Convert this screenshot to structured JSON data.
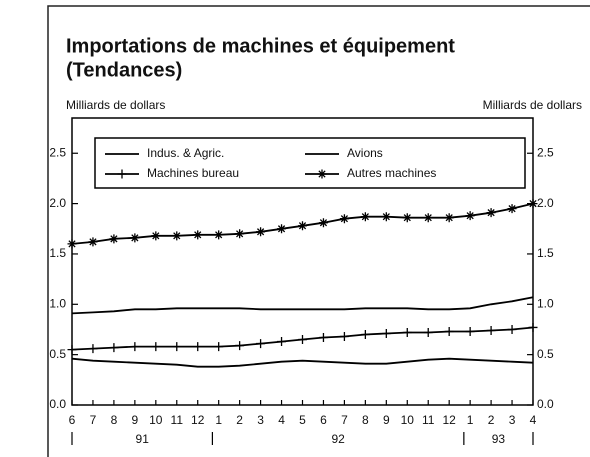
{
  "chart_data": {
    "type": "line",
    "title": [
      "Importations de machines et équipement",
      "(Tendances)"
    ],
    "y_label_left": "Milliards de dollars",
    "y_label_right": "Milliards de dollars",
    "categories": [
      "6",
      "7",
      "8",
      "9",
      "10",
      "11",
      "12",
      "1",
      "2",
      "3",
      "4",
      "5",
      "6",
      "7",
      "8",
      "9",
      "10",
      "11",
      "12",
      "1",
      "2",
      "3",
      "4"
    ],
    "year_labels": [
      "91",
      "92",
      "93"
    ],
    "ylim": [
      0,
      2.85
    ],
    "yticks": [
      {
        "value": 0,
        "label": "0.0"
      },
      0.5,
      {
        "value": 1,
        "label": "1.0"
      },
      1.5,
      {
        "value": 2,
        "label": "2.0"
      },
      2.5
    ],
    "series": [
      {
        "name": "Indus. & Agric.",
        "color": "#000000",
        "marker": "none",
        "values": [
          0.91,
          0.92,
          0.93,
          0.95,
          0.95,
          0.96,
          0.96,
          0.96,
          0.96,
          0.95,
          0.95,
          0.95,
          0.95,
          0.95,
          0.96,
          0.96,
          0.96,
          0.95,
          0.95,
          0.96,
          1.0,
          1.03,
          1.07
        ]
      },
      {
        "name": "Avions",
        "color": "#000000",
        "marker": "none",
        "values": [
          0.46,
          0.44,
          0.43,
          0.42,
          0.41,
          0.4,
          0.38,
          0.38,
          0.39,
          0.41,
          0.43,
          0.44,
          0.43,
          0.42,
          0.41,
          0.41,
          0.43,
          0.45,
          0.46,
          0.45,
          0.44,
          0.43,
          0.42
        ]
      },
      {
        "name": "Machines bureau",
        "color": "#000000",
        "marker": "plus",
        "values": [
          0.55,
          0.56,
          0.57,
          0.58,
          0.58,
          0.58,
          0.58,
          0.58,
          0.59,
          0.61,
          0.63,
          0.65,
          0.67,
          0.68,
          0.7,
          0.71,
          0.72,
          0.72,
          0.73,
          0.73,
          0.74,
          0.75,
          0.77
        ]
      },
      {
        "name": "Autres machines",
        "color": "#000000",
        "marker": "star",
        "values": [
          1.6,
          1.62,
          1.65,
          1.66,
          1.68,
          1.68,
          1.69,
          1.69,
          1.7,
          1.72,
          1.75,
          1.78,
          1.81,
          1.85,
          1.87,
          1.87,
          1.86,
          1.86,
          1.86,
          1.88,
          1.91,
          1.95,
          2.0
        ]
      }
    ]
  }
}
